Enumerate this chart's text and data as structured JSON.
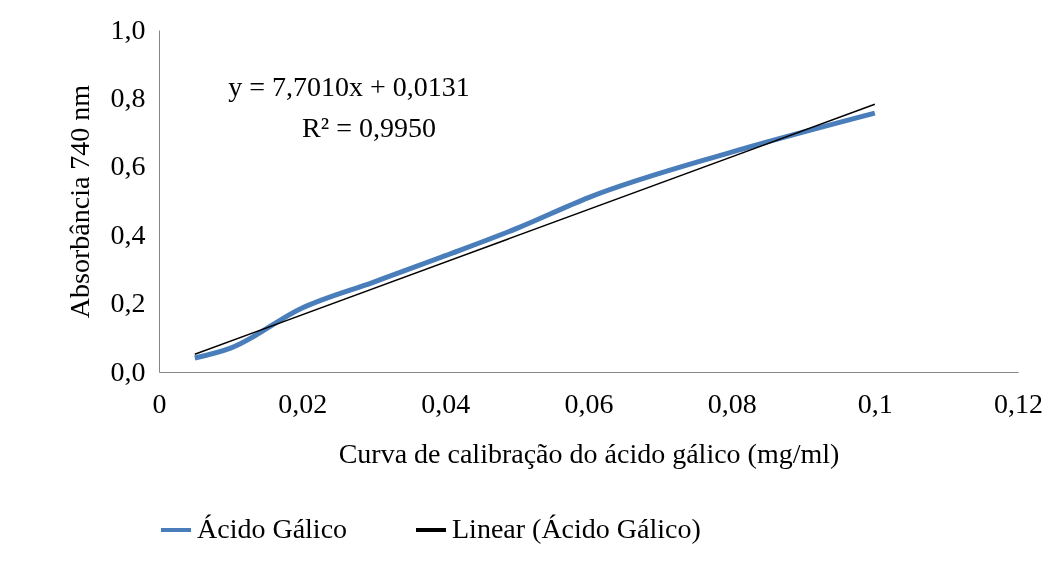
{
  "chart_data": {
    "type": "line",
    "xlabel": "Curva de calibração do ácido gálico (mg/ml)",
    "ylabel": "Absorbância 740 nm",
    "x": [
      0.005,
      0.01,
      0.02,
      0.03,
      0.04,
      0.05,
      0.06,
      0.08,
      0.1
    ],
    "series": [
      {
        "name": "Ácido Gálico",
        "color": "#4a7ebb",
        "values": [
          0.041,
          0.07,
          0.187,
          0.263,
          0.34,
          0.42,
          0.51,
          0.643,
          0.757
        ]
      },
      {
        "name": "Linear (Ácido Gálico)",
        "color": "#000000",
        "x": [
          0.005,
          0.1
        ],
        "values": [
          0.052,
          0.783
        ]
      }
    ],
    "xlim": [
      0,
      0.12
    ],
    "xticks": [
      0,
      {
        "value": 0.02,
        "label": "0,02"
      },
      {
        "value": 0.04,
        "label": "0,04"
      },
      {
        "value": 0.06,
        "label": "0,06"
      },
      {
        "value": 0.08,
        "label": "0,08"
      },
      {
        "value": 0.1,
        "label": "0,1"
      },
      {
        "value": 0.12,
        "label": "0,12"
      }
    ],
    "ylim": [
      0,
      1
    ],
    "yticks": [
      {
        "value": 0,
        "label": "0,0"
      },
      {
        "value": 0.2,
        "label": "0,2"
      },
      {
        "value": 0.4,
        "label": "0,4"
      },
      {
        "value": 0.6,
        "label": "0,6"
      },
      {
        "value": 0.8,
        "label": "0,8"
      },
      {
        "value": 1,
        "label": "1,0"
      }
    ],
    "annotations": [
      "y = 7,7010x + 0,0131",
      "R² = 0,9950"
    ],
    "legend": "bottom",
    "marker": "none",
    "line_style": "solid",
    "grid": false
  }
}
